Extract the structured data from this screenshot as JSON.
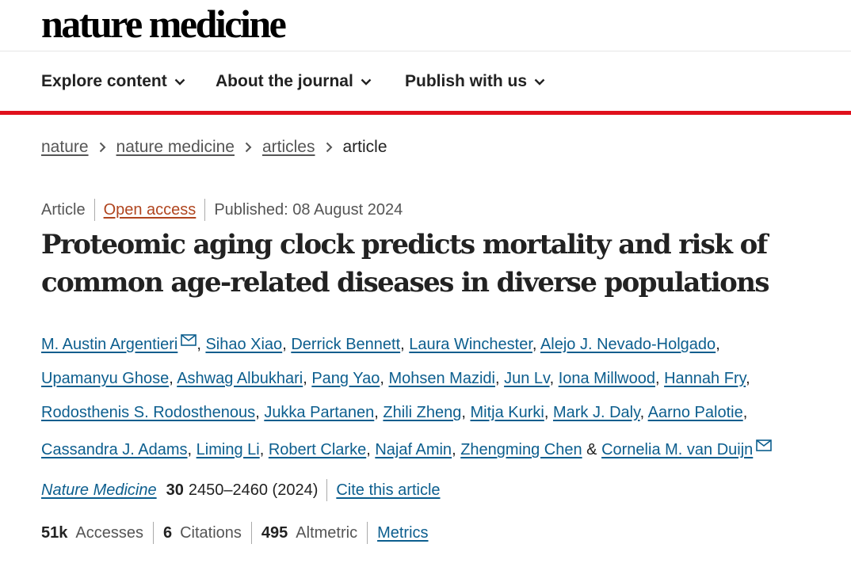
{
  "header": {
    "logo": "nature medicine"
  },
  "nav": {
    "items": [
      {
        "label": "Explore content"
      },
      {
        "label": "About the journal"
      },
      {
        "label": "Publish with us"
      }
    ]
  },
  "breadcrumb": [
    "nature",
    "nature medicine",
    "articles",
    "article"
  ],
  "article": {
    "type": "Article",
    "access": "Open access",
    "published": "Published: 08 August 2024",
    "title_line1": "Proteomic aging clock predicts mortality and risk of",
    "title_line2": "common age-related diseases in diverse populations"
  },
  "authors": [
    "M. Austin Argentieri",
    "Sihao Xiao",
    "Derrick Bennett",
    "Laura Winchester",
    "Alejo J. Nevado-Holgado",
    "Upamanyu Ghose",
    "Ashwag Albukhari",
    "Pang Yao",
    "Mohsen Mazidi",
    "Jun Lv",
    "Iona Millwood",
    "Hannah Fry",
    "Rodosthenis S. Rodosthenous",
    "Jukka Partanen",
    "Zhili Zheng",
    "Mitja Kurki",
    "Mark J. Daly",
    "Aarno Palotie",
    "Cassandra J. Adams",
    "Liming Li",
    "Robert Clarke",
    "Najaf Amin",
    "Zhengming Chen",
    "Cornelia M. van Duijn"
  ],
  "citation": {
    "journal": "Nature Medicine",
    "volume": "30",
    "pages_year": "2450–2460 (2024)",
    "cite_link": "Cite this article"
  },
  "metrics": {
    "accesses_value": "51k",
    "accesses_label": "Accesses",
    "citations_value": "6",
    "citations_label": "Citations",
    "altmetric_value": "495",
    "altmetric_label": "Altmetric",
    "metrics_link": "Metrics"
  },
  "colors": {
    "accent_red": "#e0101c",
    "link": "#0c5e8e",
    "open_access": "#b0451f"
  }
}
